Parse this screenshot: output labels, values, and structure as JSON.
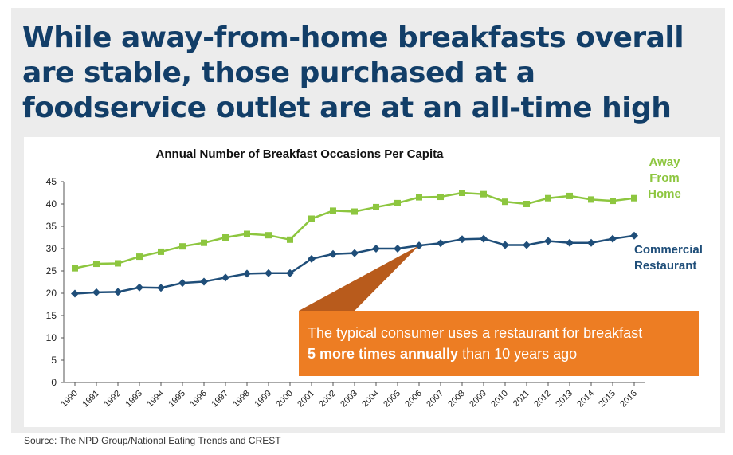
{
  "headline": "While away-from-home breakfasts overall are stable, those purchased at a foodservice outlet are at an all-time high",
  "source": "Source: The NPD Group/National Eating Trends and CREST",
  "callout": {
    "text_plain_1": "The typical consumer uses a restaurant for breakfast",
    "text_bold": "5 more times annually",
    "text_plain_2": " than 10 years ago",
    "color": "#ed7d23"
  },
  "chart_data": {
    "type": "line",
    "title": "Annual Number of Breakfast Occasions Per Capita",
    "x": [
      "1990",
      "1991",
      "1992",
      "1993",
      "1994",
      "1995",
      "1996",
      "1997",
      "1998",
      "1999",
      "2000",
      "2001",
      "2002",
      "2003",
      "2004",
      "2005",
      "2006",
      "2007",
      "2008",
      "2009",
      "2010",
      "2011",
      "2012",
      "2013",
      "2014",
      "2015",
      "2016"
    ],
    "ylim": [
      0,
      45
    ],
    "yticks": [
      0,
      5,
      10,
      15,
      20,
      25,
      30,
      35,
      40,
      45
    ],
    "grid": false,
    "series": [
      {
        "name": "Away From Home",
        "label_lines": [
          "Away",
          "From",
          "Home"
        ],
        "color": "#8dc63f",
        "marker": "square",
        "values": [
          25.6,
          26.6,
          26.7,
          28.2,
          29.3,
          30.5,
          31.3,
          32.5,
          33.3,
          33.0,
          32.0,
          36.7,
          38.5,
          38.3,
          39.3,
          40.2,
          41.5,
          41.6,
          42.5,
          42.2,
          40.5,
          40.0,
          41.3,
          41.8,
          41.0,
          40.7,
          41.3
        ]
      },
      {
        "name": "Commercial Restaurant",
        "label_lines": [
          "Commercial",
          "Restaurant"
        ],
        "color": "#1f4e79",
        "marker": "diamond",
        "values": [
          19.9,
          20.2,
          20.3,
          21.3,
          21.2,
          22.3,
          22.6,
          23.5,
          24.4,
          24.5,
          24.5,
          27.7,
          28.8,
          29.0,
          30.0,
          30.0,
          30.7,
          31.2,
          32.1,
          32.2,
          30.8,
          30.8,
          31.7,
          31.3,
          31.3,
          32.2,
          32.9
        ]
      }
    ]
  }
}
